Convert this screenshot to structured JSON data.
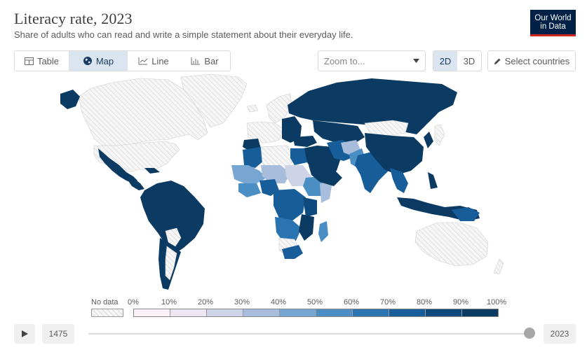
{
  "header": {
    "title": "Literacy rate, 2023",
    "subtitle": "Share of adults who can read and write a simple statement about their everyday life.",
    "logo_line1": "Our World",
    "logo_line2": "in Data"
  },
  "tabs": [
    {
      "label": "Table",
      "icon": "table-icon",
      "active": false
    },
    {
      "label": "Map",
      "icon": "globe-icon",
      "active": true
    },
    {
      "label": "Line",
      "icon": "line-chart-icon",
      "active": false
    },
    {
      "label": "Bar",
      "icon": "bar-chart-icon",
      "active": false
    }
  ],
  "controls": {
    "zoom_placeholder": "Zoom to...",
    "dim_2d": "2D",
    "dim_3d": "3D",
    "active_dim": "2D",
    "select_countries": "Select countries"
  },
  "legend": {
    "no_data_label": "No data",
    "bins": [
      "0%",
      "10%",
      "20%",
      "30%",
      "40%",
      "50%",
      "60%",
      "70%",
      "80%",
      "90%",
      "100%"
    ],
    "colors": [
      "#fbf1f6",
      "#ece6f2",
      "#cfd3e7",
      "#a8bddc",
      "#78a6d2",
      "#4b8ec4",
      "#2a74b1",
      "#175d9a",
      "#0e4a7d",
      "#0b3a62"
    ]
  },
  "timeline": {
    "start_year": "1475",
    "end_year": "2023",
    "selected_year": "2023"
  },
  "map_colors": {
    "no_data_fill": "#f3f3f3",
    "hatch_stroke": "#c4c4c4",
    "high": "#0b3a62",
    "mid_high": "#175d9a",
    "mid": "#4b8ec4",
    "low": "#a8bddc"
  }
}
